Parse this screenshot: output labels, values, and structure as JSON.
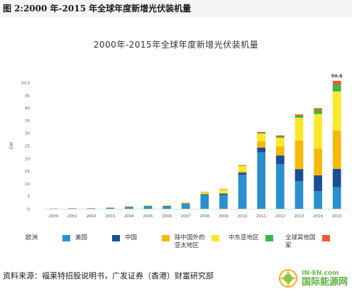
{
  "caption": "图 2:2000 年-2015 年全球年度新增光伏装机量",
  "source": "资料来源：福莱特招股说明书，广发证券（香港）财富研究部",
  "watermark": {
    "url": "IN-EN.com",
    "name": "国际能源网"
  },
  "colors": {
    "europe": "#2a8fce",
    "usa": "#1a4f96",
    "china": "#f6b80a",
    "asia_pacific": "#fbe82a",
    "middle_east": "#3cb54a",
    "rest_world": "#ef5a24"
  },
  "chart_data": {
    "type": "bar",
    "stacked": true,
    "title": "2000年-2015年全球年度新增光伏装机量",
    "ylabel": "GW",
    "xlabel": "",
    "ylim": [
      0,
      50
    ],
    "yticks": [
      0,
      5,
      10,
      15,
      20,
      25,
      30,
      35,
      40,
      45,
      50
    ],
    "yticks_labels": [
      "0",
      "5",
      "10",
      "15",
      "20",
      "25",
      "30",
      "35",
      "40",
      "45",
      "50.0"
    ],
    "grid": false,
    "legend_position": "bottom",
    "categories": [
      "2000",
      "2001",
      "2002",
      "2003",
      "2004",
      "2005",
      "2006",
      "2007",
      "2008",
      "2009",
      "2010",
      "2011",
      "2012",
      "2013",
      "2014",
      "2015"
    ],
    "series": [
      {
        "key": "europe",
        "name": "欧洲",
        "values": [
          0.1,
          0.2,
          0.2,
          0.3,
          0.7,
          1.0,
          1.0,
          1.9,
          5.5,
          5.5,
          13.4,
          22.3,
          17.7,
          10.9,
          7.0,
          8.5
        ]
      },
      {
        "key": "usa",
        "name": "美国",
        "values": [
          0.0,
          0.0,
          0.0,
          0.1,
          0.1,
          0.1,
          0.1,
          0.2,
          0.3,
          0.5,
          0.9,
          1.9,
          3.4,
          4.8,
          6.2,
          7.3
        ]
      },
      {
        "key": "china",
        "name": "中国",
        "values": [
          0.0,
          0.0,
          0.0,
          0.0,
          0.0,
          0.0,
          0.0,
          0.0,
          0.0,
          0.2,
          0.5,
          2.5,
          3.5,
          11.3,
          10.6,
          15.2
        ]
      },
      {
        "key": "asia_pacific",
        "name": "除中国外的亚太地区",
        "values": [
          0.1,
          0.1,
          0.1,
          0.1,
          0.2,
          0.3,
          0.4,
          0.5,
          0.8,
          1.4,
          2.2,
          3.0,
          3.5,
          9.0,
          13.7,
          15.4
        ]
      },
      {
        "key": "middle_east",
        "name": "中东亚地区",
        "values": [
          0.0,
          0.0,
          0.0,
          0.0,
          0.0,
          0.0,
          0.0,
          0.0,
          0.0,
          0.1,
          0.1,
          0.3,
          0.4,
          0.8,
          1.6,
          2.6
        ]
      },
      {
        "key": "rest_world",
        "name": "全球其他国家",
        "values": [
          0.0,
          0.0,
          0.0,
          0.0,
          0.0,
          0.0,
          0.0,
          0.0,
          0.1,
          0.1,
          0.2,
          0.4,
          0.5,
          0.5,
          0.7,
          1.6
        ]
      }
    ],
    "annotations": [
      {
        "category": "2015",
        "text": "50.6"
      }
    ]
  }
}
